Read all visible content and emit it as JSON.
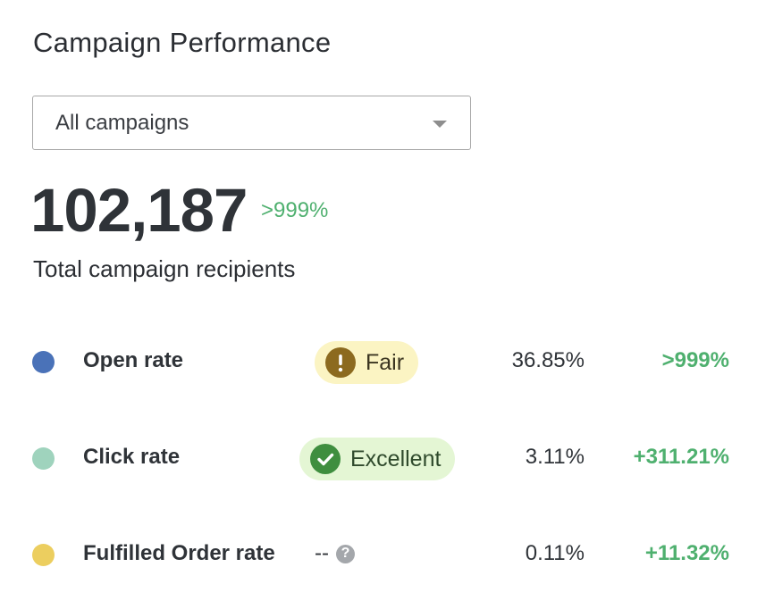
{
  "header": {
    "title": "Campaign Performance"
  },
  "filter": {
    "selected": "All campaigns"
  },
  "summary": {
    "total": "102,187",
    "change": ">999%",
    "label": "Total campaign recipients"
  },
  "metrics": [
    {
      "label": "Open rate",
      "color": "#4a72b8",
      "badge": "Fair",
      "badge_icon": "exclamation-icon",
      "value": "36.85%",
      "change": ">999%"
    },
    {
      "label": "Click rate",
      "color": "#9fd3bd",
      "badge": "Excellent",
      "badge_icon": "checkmark-icon",
      "value": "3.11%",
      "change": "+311.21%"
    },
    {
      "label": "Fulfilled Order rate",
      "color": "#ecce5f",
      "badge": "--",
      "badge_icon": "question-icon",
      "value": "0.11%",
      "change": "+11.32%"
    }
  ],
  "colors": {
    "positive": "#4fb06f",
    "fair_bg": "#fbf4c3",
    "excellent_bg": "#e4f6d4"
  }
}
